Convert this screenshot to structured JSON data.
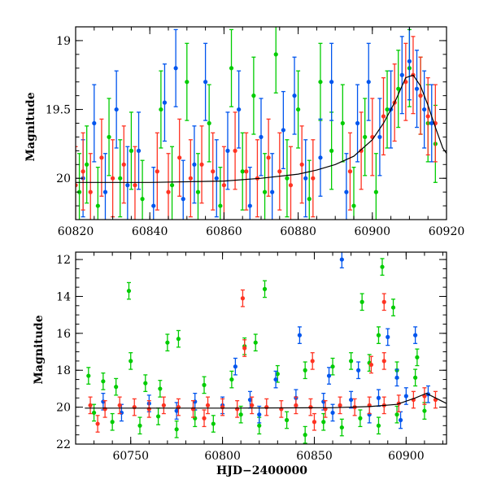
{
  "chart_data": [
    {
      "type": "scatter",
      "panel": "top",
      "title": "",
      "xlabel": "",
      "ylabel": "Magnitude",
      "xlim": [
        60820,
        60920
      ],
      "ylim": [
        20.3,
        18.9
      ],
      "y_inverted": true,
      "x_ticks": [
        60820,
        60840,
        60860,
        60880,
        60900,
        60920
      ],
      "x_tick_labels": [
        "60820",
        "60840",
        "60860",
        "60880",
        "60900",
        "60920"
      ],
      "y_ticks": [
        19,
        19.5,
        20
      ],
      "y_tick_labels": [
        "19",
        "19.5",
        "20"
      ],
      "grid": false,
      "model_curve": {
        "color": "#000000",
        "x": [
          60820,
          60840,
          60860,
          60870,
          60880,
          60885,
          60890,
          60895,
          60900,
          60903,
          60906,
          60909,
          60911,
          60913,
          60915,
          60917,
          60919,
          60920
        ],
        "y": [
          20.03,
          20.03,
          20.02,
          20.0,
          19.97,
          19.94,
          19.9,
          19.84,
          19.72,
          19.6,
          19.45,
          19.27,
          19.25,
          19.33,
          19.47,
          19.63,
          19.78,
          19.82
        ]
      },
      "series": [
        {
          "color": "#00cc00",
          "band": "green",
          "points": [
            [
              60821,
              20.1
            ],
            [
              60823,
              19.9
            ],
            [
              60826,
              20.2
            ],
            [
              60829,
              19.7
            ],
            [
              60832,
              20.0
            ],
            [
              60835,
              19.8
            ],
            [
              60838,
              20.15
            ],
            [
              60843,
              19.5
            ],
            [
              60846,
              20.05
            ],
            [
              60850,
              19.3
            ],
            [
              60853,
              20.1
            ],
            [
              60856,
              19.6
            ],
            [
              60859,
              20.2
            ],
            [
              60862,
              19.2
            ],
            [
              60865,
              19.95
            ],
            [
              60868,
              19.4
            ],
            [
              60871,
              20.1
            ],
            [
              60874,
              19.1
            ],
            [
              60877,
              20.0
            ],
            [
              60880,
              19.5
            ],
            [
              60883,
              20.15
            ],
            [
              60886,
              19.3
            ],
            [
              60889,
              19.8
            ],
            [
              60892,
              19.6
            ],
            [
              60895,
              20.2
            ],
            [
              60898,
              19.7
            ],
            [
              60901,
              20.1
            ],
            [
              60904,
              19.5
            ],
            [
              60907,
              19.35
            ],
            [
              60910,
              19.2
            ],
            [
              60913,
              19.4
            ],
            [
              60915,
              19.6
            ],
            [
              60917,
              19.75
            ]
          ]
        },
        {
          "color": "#0055ee",
          "band": "blue",
          "points": [
            [
              60822,
              20.0
            ],
            [
              60825,
              19.6
            ],
            [
              60828,
              20.1
            ],
            [
              60831,
              19.5
            ],
            [
              60834,
              20.05
            ],
            [
              60837,
              19.8
            ],
            [
              60841,
              20.2
            ],
            [
              60844,
              19.45
            ],
            [
              60847,
              19.2
            ],
            [
              60849,
              20.15
            ],
            [
              60852,
              19.9
            ],
            [
              60855,
              19.3
            ],
            [
              60858,
              20.0
            ],
            [
              60861,
              19.8
            ],
            [
              60864,
              19.5
            ],
            [
              60867,
              20.2
            ],
            [
              60870,
              19.7
            ],
            [
              60873,
              20.1
            ],
            [
              60876,
              19.65
            ],
            [
              60879,
              19.4
            ],
            [
              60882,
              20.0
            ],
            [
              60886,
              19.85
            ],
            [
              60889,
              19.3
            ],
            [
              60893,
              20.1
            ],
            [
              60896,
              19.6
            ],
            [
              60899,
              19.3
            ],
            [
              60902,
              19.7
            ],
            [
              60905,
              19.5
            ],
            [
              60908,
              19.25
            ],
            [
              60910,
              19.15
            ],
            [
              60912,
              19.35
            ],
            [
              60914,
              19.5
            ],
            [
              60916,
              19.6
            ]
          ]
        },
        {
          "color": "#ff3322",
          "band": "red",
          "points": [
            [
              60820,
              20.05
            ],
            [
              60822,
              19.95
            ],
            [
              60824,
              20.1
            ],
            [
              60827,
              19.85
            ],
            [
              60830,
              20.0
            ],
            [
              60833,
              19.9
            ],
            [
              60836,
              20.05
            ],
            [
              60842,
              19.95
            ],
            [
              60845,
              20.1
            ],
            [
              60848,
              19.85
            ],
            [
              60851,
              20.0
            ],
            [
              60854,
              19.9
            ],
            [
              60857,
              19.95
            ],
            [
              60860,
              20.05
            ],
            [
              60863,
              19.8
            ],
            [
              60866,
              19.95
            ],
            [
              60869,
              20.0
            ],
            [
              60872,
              19.85
            ],
            [
              60875,
              19.95
            ],
            [
              60878,
              20.05
            ],
            [
              60881,
              19.9
            ],
            [
              60884,
              20.0
            ],
            [
              60894,
              19.95
            ],
            [
              60897,
              19.8
            ],
            [
              60900,
              19.7
            ],
            [
              60903,
              19.55
            ],
            [
              60906,
              19.45
            ],
            [
              60909,
              19.3
            ],
            [
              60911,
              19.25
            ],
            [
              60913,
              19.4
            ],
            [
              60915,
              19.55
            ],
            [
              60917,
              19.6
            ]
          ]
        }
      ]
    },
    {
      "type": "scatter",
      "panel": "bottom",
      "title": "",
      "xlabel": "HJD−2400000",
      "ylabel": "Magnitude",
      "xlim": [
        60720,
        60922
      ],
      "ylim": [
        22,
        11.6
      ],
      "y_inverted": true,
      "x_ticks": [
        60750,
        60800,
        60850,
        60900
      ],
      "x_tick_labels": [
        "60750",
        "60800",
        "60850",
        "60900"
      ],
      "y_ticks": [
        12,
        14,
        16,
        18,
        20,
        22
      ],
      "y_tick_labels": [
        "12",
        "14",
        "16",
        "18",
        "20",
        "22"
      ],
      "grid": false,
      "model_curve": {
        "color": "#000000",
        "x": [
          60725,
          60800,
          60860,
          60880,
          60895,
          60905,
          60911,
          60916,
          60922
        ],
        "y": [
          20.05,
          20.05,
          20.03,
          19.97,
          19.85,
          19.5,
          19.25,
          19.5,
          19.8
        ]
      },
      "series": [
        {
          "color": "#00cc00",
          "band": "green",
          "points": [
            [
              60749,
              13.7
            ],
            [
              60750,
              17.5
            ],
            [
              60770,
              16.5
            ],
            [
              60776,
              16.3
            ],
            [
              60812,
              16.7
            ],
            [
              60818,
              16.5
            ],
            [
              60823,
              13.6
            ],
            [
              60887,
              12.4
            ],
            [
              60876,
              14.3
            ],
            [
              60885,
              16.1
            ],
            [
              60893,
              14.6
            ],
            [
              60906,
              17.3
            ],
            [
              60727,
              18.3
            ],
            [
              60735,
              18.6
            ],
            [
              60742,
              18.9
            ],
            [
              60758,
              18.7
            ],
            [
              60766,
              19.0
            ],
            [
              60790,
              18.8
            ],
            [
              60805,
              18.5
            ],
            [
              60830,
              18.2
            ],
            [
              60845,
              18.0
            ],
            [
              60860,
              17.8
            ],
            [
              60870,
              17.5
            ],
            [
              60880,
              17.6
            ],
            [
              60895,
              18.0
            ],
            [
              60905,
              18.4
            ],
            [
              60730,
              20.3
            ],
            [
              60740,
              20.8
            ],
            [
              60755,
              21.0
            ],
            [
              60765,
              20.5
            ],
            [
              60775,
              21.2
            ],
            [
              60785,
              20.6
            ],
            [
              60795,
              20.9
            ],
            [
              60810,
              20.4
            ],
            [
              60820,
              21.0
            ],
            [
              60835,
              20.7
            ],
            [
              60845,
              21.5
            ],
            [
              60855,
              20.8
            ],
            [
              60865,
              21.1
            ],
            [
              60875,
              20.6
            ],
            [
              60885,
              21.0
            ],
            [
              60895,
              20.4
            ],
            [
              60910,
              20.2
            ]
          ]
        },
        {
          "color": "#0055ee",
          "band": "blue",
          "points": [
            [
              60865,
              12.0
            ],
            [
              60890,
              16.2
            ],
            [
              60905,
              16.1
            ],
            [
              60842,
              16.1
            ],
            [
              60807,
              17.8
            ],
            [
              60829,
              18.5
            ],
            [
              60858,
              18.3
            ],
            [
              60874,
              18.0
            ],
            [
              60895,
              18.4
            ],
            [
              60735,
              19.7
            ],
            [
              60760,
              19.8
            ],
            [
              60785,
              19.7
            ],
            [
              60800,
              19.9
            ],
            [
              60815,
              19.6
            ],
            [
              60840,
              19.5
            ],
            [
              60855,
              19.7
            ],
            [
              60870,
              19.6
            ],
            [
              60885,
              19.5
            ],
            [
              60900,
              19.4
            ],
            [
              60912,
              19.3
            ],
            [
              60745,
              20.3
            ],
            [
              60775,
              20.2
            ],
            [
              60820,
              20.4
            ],
            [
              60860,
              20.3
            ],
            [
              60880,
              20.4
            ],
            [
              60897,
              20.7
            ]
          ]
        },
        {
          "color": "#ff3322",
          "band": "red",
          "points": [
            [
              60811,
              14.1
            ],
            [
              60888,
              14.3
            ],
            [
              60812,
              16.8
            ],
            [
              60849,
              17.5
            ],
            [
              60881,
              17.7
            ],
            [
              60888,
              17.5
            ],
            [
              60728,
              19.9
            ],
            [
              60736,
              20.1
            ],
            [
              60744,
              19.9
            ],
            [
              60752,
              20.0
            ],
            [
              60760,
              20.1
            ],
            [
              60768,
              19.9
            ],
            [
              60776,
              20.0
            ],
            [
              60784,
              20.1
            ],
            [
              60792,
              19.9
            ],
            [
              60800,
              20.0
            ],
            [
              60808,
              20.1
            ],
            [
              60816,
              19.9
            ],
            [
              60824,
              20.0
            ],
            [
              60832,
              20.1
            ],
            [
              60840,
              19.9
            ],
            [
              60848,
              20.0
            ],
            [
              60856,
              20.1
            ],
            [
              60864,
              19.9
            ],
            [
              60872,
              20.0
            ],
            [
              60880,
              19.9
            ],
            [
              60888,
              19.9
            ],
            [
              60896,
              19.8
            ],
            [
              60904,
              19.6
            ],
            [
              60910,
              19.4
            ],
            [
              60916,
              19.6
            ],
            [
              60732,
              20.9
            ],
            [
              60790,
              20.6
            ],
            [
              60850,
              20.8
            ]
          ]
        }
      ]
    }
  ]
}
